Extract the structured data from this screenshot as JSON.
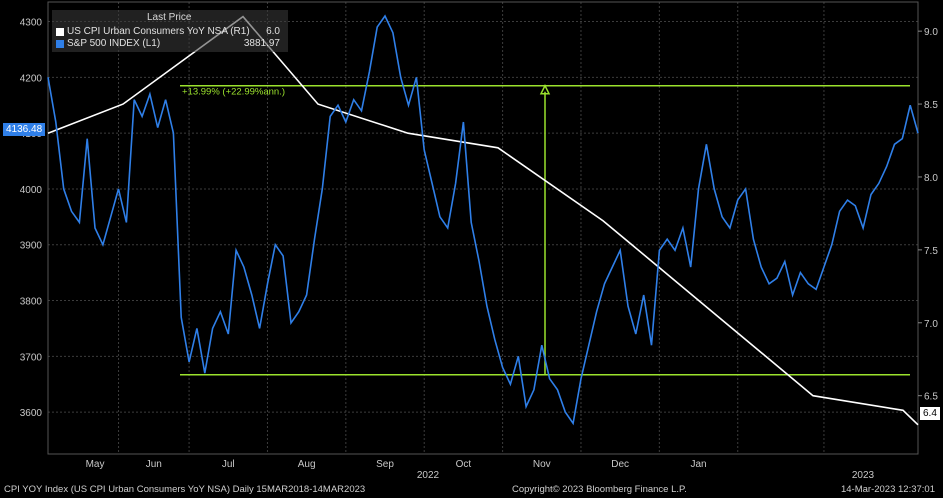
{
  "legend": {
    "header": "Last Price",
    "series": [
      {
        "name": "US CPI Urban Consumers YoY NSA  (R1)",
        "value": "6.0",
        "color": "#ffffff"
      },
      {
        "name": "S&P 500 INDEX  (L1)",
        "value": "3881.97",
        "color": "#2f7fe8"
      }
    ]
  },
  "footer": {
    "left": "CPI YOY Index (US CPI Urban Consumers YoY NSA)  Daily 15MAR2018-14MAR2023",
    "center": "Copyright© 2023 Bloomberg Finance L.P.",
    "right": "14-Mar-2023 12:37:01"
  },
  "tags": {
    "left": "4136.48",
    "right": "6.4"
  },
  "colors": {
    "spx": "#2f7fe8",
    "cpi": "#ffffff",
    "annotation": "#9be22d",
    "grid": "#3c3c3c",
    "tagLeft": "#2f7fe8"
  },
  "chart_data": {
    "type": "line",
    "x_ticks": [
      "May",
      "Jun",
      "Jul",
      "Aug",
      "Sep",
      "Oct",
      "Nov",
      "Dec",
      "Jan"
    ],
    "year_labels": [
      "2022",
      "2023"
    ],
    "left_axis": {
      "ticks": [
        4300,
        4200,
        4100,
        4000,
        3900,
        3800,
        3700,
        3600
      ],
      "ylim": [
        3525,
        4335
      ]
    },
    "right_axis": {
      "ticks": [
        "9.0",
        "8.5",
        "8.0",
        "7.5",
        "7.0",
        "6.5"
      ],
      "ylim": [
        6.1,
        9.2
      ]
    },
    "annotation": {
      "label": "+13.99% (+22.99%ann.)",
      "low": 3667,
      "high": 4185
    },
    "grid": true,
    "series": [
      {
        "name": "US CPI Urban Consumers YoY NSA",
        "axis": "right",
        "points": [
          [
            0,
            8.3
          ],
          [
            5,
            8.5
          ],
          [
            13,
            9.1
          ],
          [
            18,
            8.5
          ],
          [
            24,
            8.3
          ],
          [
            30,
            8.2
          ],
          [
            37,
            7.7
          ],
          [
            44,
            7.1
          ],
          [
            51,
            6.5
          ],
          [
            57,
            6.4
          ],
          [
            58,
            6.3
          ]
        ]
      },
      {
        "name": "S&P 500 INDEX",
        "axis": "left",
        "values": [
          4200,
          4120,
          4000,
          3960,
          3940,
          4090,
          3930,
          3900,
          3950,
          4000,
          3940,
          4160,
          4130,
          4170,
          4110,
          4160,
          4100,
          3770,
          3690,
          3750,
          3670,
          3750,
          3780,
          3740,
          3890,
          3860,
          3810,
          3750,
          3830,
          3900,
          3880,
          3760,
          3780,
          3810,
          3910,
          4000,
          4130,
          4150,
          4120,
          4160,
          4140,
          4210,
          4290,
          4310,
          4280,
          4200,
          4150,
          4200,
          4070,
          4010,
          3950,
          3930,
          4010,
          4120,
          3940,
          3870,
          3790,
          3730,
          3680,
          3650,
          3700,
          3610,
          3640,
          3720,
          3660,
          3640,
          3600,
          3580,
          3660,
          3720,
          3780,
          3830,
          3860,
          3890,
          3790,
          3740,
          3810,
          3720,
          3890,
          3910,
          3890,
          3930,
          3860,
          4000,
          4080,
          4000,
          3950,
          3930,
          3980,
          4000,
          3910,
          3860,
          3830,
          3840,
          3870,
          3810,
          3850,
          3830,
          3820,
          3860,
          3900,
          3960,
          3980,
          3970,
          3930,
          3990,
          4010,
          4040,
          4080,
          4090,
          4150,
          4100
        ]
      }
    ]
  }
}
